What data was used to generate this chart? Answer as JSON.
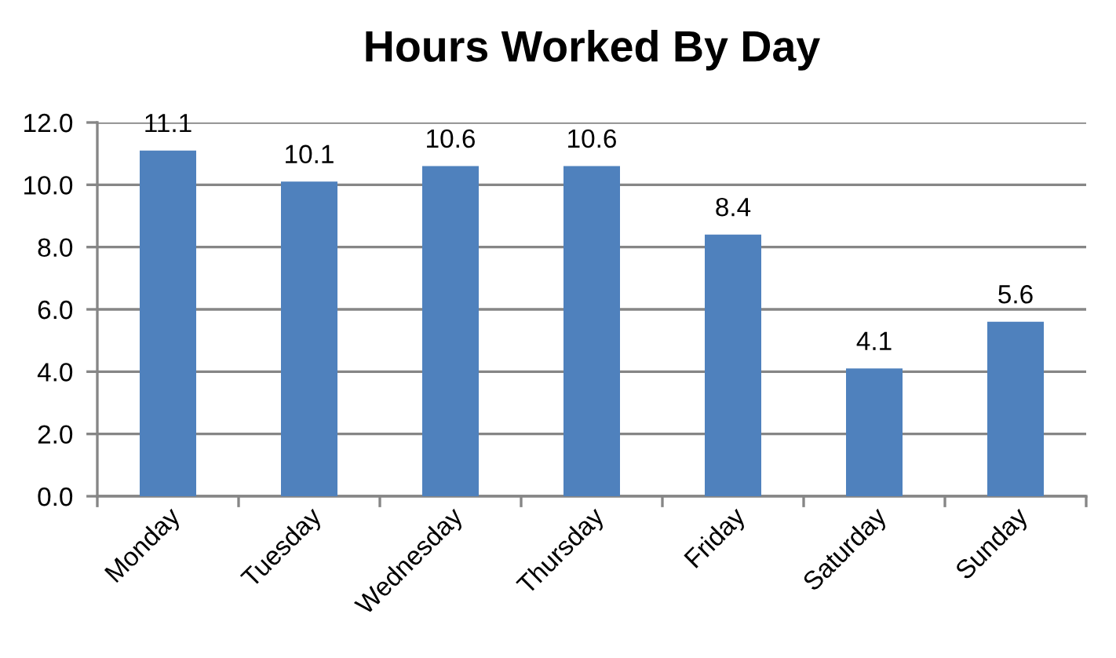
{
  "chart_data": {
    "type": "bar",
    "title": "Hours Worked By Day",
    "categories": [
      "Monday",
      "Tuesday",
      "Wednesday",
      "Thursday",
      "Friday",
      "Saturday",
      "Sunday"
    ],
    "values": [
      11.1,
      10.1,
      10.6,
      10.6,
      8.4,
      4.1,
      5.6
    ],
    "color": "#4f81bd",
    "ylim": [
      0,
      12
    ],
    "yticks": [
      {
        "value": 0,
        "label": "0.0"
      },
      {
        "value": 2,
        "label": "2.0"
      },
      {
        "value": 4,
        "label": "4.0"
      },
      {
        "value": 6,
        "label": "6.0"
      },
      {
        "value": 8,
        "label": "8.0"
      },
      {
        "value": 10,
        "label": "10.0"
      },
      {
        "value": 12,
        "label": "12.0"
      }
    ],
    "grid": "y",
    "data_labels": true,
    "legend": false
  }
}
